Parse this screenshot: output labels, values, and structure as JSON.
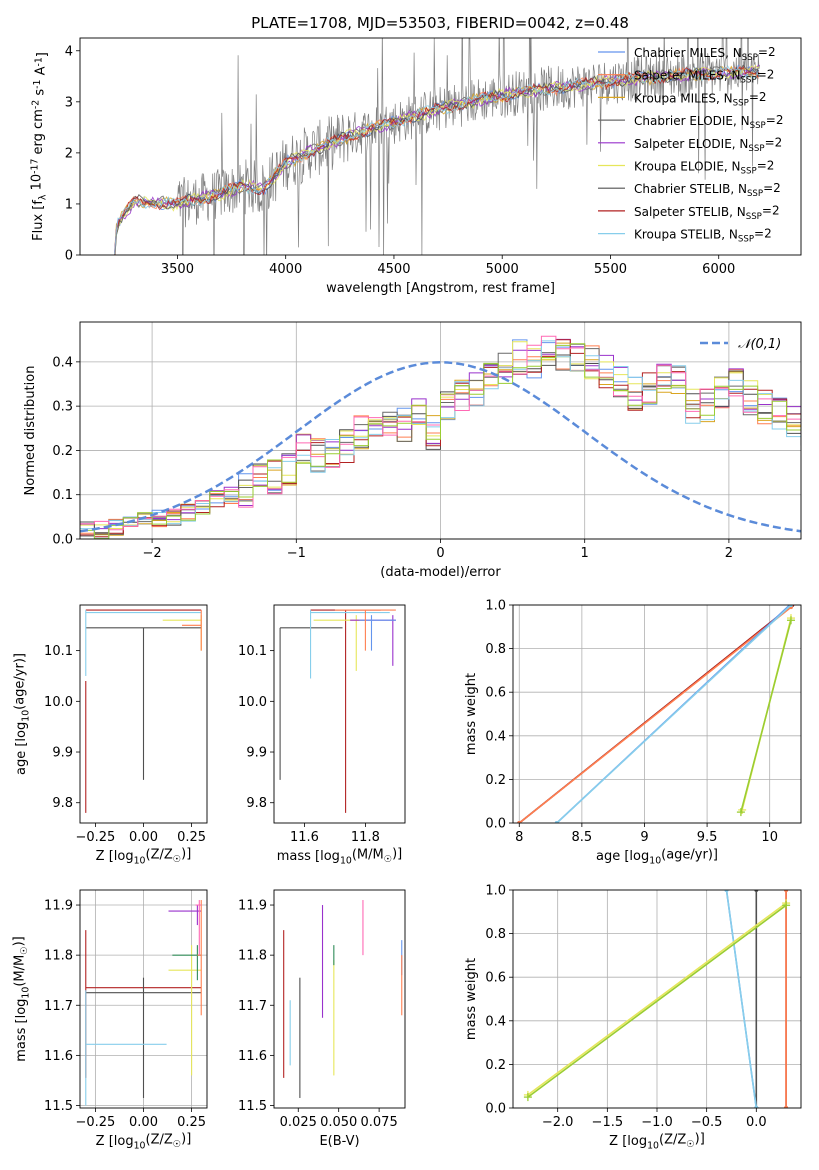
{
  "chart_data": [
    {
      "type": "line",
      "title": "PLATE=1708, MJD=53503, FIBERID=0042, z=0.48",
      "xlabel": "wavelength [Angstrom, rest frame]",
      "ylabel": "Flux [f$_\\lambda 10^{-17}$ erg cm$^{-2}$ s$^{-1}$ A$^{-1}$]",
      "xlim": [
        3050,
        6380
      ],
      "ylim": [
        0,
        4.25
      ],
      "xticks": [
        3500,
        4000,
        4500,
        5000,
        5500,
        6000
      ],
      "yticks": [
        0,
        1,
        2,
        3,
        4
      ],
      "grid": false,
      "legend_placement": "upper-right",
      "data_range": [
        3210,
        6190
      ],
      "observed_trend": [
        [
          3210,
          0.0
        ],
        [
          3220,
          0.6
        ],
        [
          3300,
          1.05
        ],
        [
          3500,
          1.0
        ],
        [
          3700,
          1.2
        ],
        [
          3800,
          1.35
        ],
        [
          3900,
          1.3
        ],
        [
          4000,
          1.8
        ],
        [
          4100,
          2.0
        ],
        [
          4300,
          2.35
        ],
        [
          4500,
          2.6
        ],
        [
          4700,
          2.85
        ],
        [
          4900,
          3.05
        ],
        [
          5100,
          3.2
        ],
        [
          5300,
          3.3
        ],
        [
          5600,
          3.45
        ],
        [
          5900,
          3.55
        ],
        [
          6190,
          3.6
        ]
      ],
      "series": [
        {
          "name": "Chabrier MILES, N$_{SSP}$=2",
          "color": "#6495ed"
        },
        {
          "name": "Salpeter MILES, N$_{SSP}$=2",
          "color": "#ff7f50"
        },
        {
          "name": "Kroupa MILES, N$_{SSP}$=2",
          "color": "#daa520"
        },
        {
          "name": "Chabrier ELODIE, N$_{SSP}$=2",
          "color": "#696969"
        },
        {
          "name": "Salpeter ELODIE, N$_{SSP}$=2",
          "color": "#9932cc"
        },
        {
          "name": "Kroupa ELODIE, N$_{SSP}$=2",
          "color": "#e6e65a"
        },
        {
          "name": "Chabrier STELIB, N$_{SSP}$=2",
          "color": "#505050"
        },
        {
          "name": "Salpeter STELIB, N$_{SSP}$=2",
          "color": "#b22222"
        },
        {
          "name": "Kroupa STELIB, N$_{SSP}$=2",
          "color": "#87ceeb"
        }
      ]
    },
    {
      "type": "line",
      "xlabel": "(data-model)/error",
      "ylabel": "Normed distribution",
      "xlim": [
        -2.5,
        2.5
      ],
      "ylim": [
        0,
        0.49
      ],
      "xticks": [
        -2,
        -1,
        0,
        1,
        2
      ],
      "yticks": [
        0.0,
        0.1,
        0.2,
        0.3,
        0.4
      ],
      "grid": true,
      "legend_placement": "upper-right",
      "legend": "$\\mathcal{N}(0,1)$",
      "bin_width": 0.1,
      "hist_envelope": [
        0.02,
        0.02,
        0.025,
        0.03,
        0.04,
        0.045,
        0.05,
        0.06,
        0.07,
        0.09,
        0.1,
        0.11,
        0.13,
        0.14,
        0.16,
        0.2,
        0.19,
        0.19,
        0.21,
        0.24,
        0.26,
        0.27,
        0.26,
        0.28,
        0.24,
        0.3,
        0.32,
        0.34,
        0.36,
        0.38,
        0.41,
        0.4,
        0.43,
        0.42,
        0.41,
        0.4,
        0.38,
        0.36,
        0.33,
        0.34,
        0.37,
        0.36,
        0.3,
        0.3,
        0.33,
        0.35,
        0.32,
        0.3,
        0.28,
        0.26,
        0.25,
        0.21,
        0.2,
        0.18,
        0.16,
        0.14,
        0.13,
        0.12,
        0.1,
        0.09,
        0.08,
        0.06,
        0.06,
        0.05,
        0.04,
        0.04,
        0.03,
        0.03,
        0.025,
        0.02,
        0.02,
        0.02,
        0.02,
        0.02,
        0.02,
        0.02,
        0.02,
        0.02,
        0.02,
        0.02,
        0.02,
        0.02,
        0.02,
        0.02,
        0.02,
        0.02,
        0.02,
        0.02,
        0.02,
        0.02
      ],
      "gauss_color": "#5b8bd9"
    },
    {
      "type": "scatter",
      "xlabel": "Z [log$_{10}$(Z/Z$_\\odot$)]",
      "ylabel": "age  [log$_{10}$(age/yr)]",
      "xlim": [
        -0.33,
        0.33
      ],
      "ylim": [
        9.76,
        10.19
      ],
      "xticks": [
        -0.25,
        0.0,
        0.25
      ],
      "xtick_labels": [
        "−0.25",
        "0.00",
        "0.25"
      ],
      "yticks": [
        9.8,
        9.9,
        10.0,
        10.1
      ],
      "grid": false,
      "crosses": [
        {
          "color": "#b22222",
          "x": [
            -0.3,
            0.3
          ],
          "y": [
            10.18,
            10.18
          ],
          "xerr": [
            [
              -0.3,
              0.3
            ]
          ],
          "yerr": [
            [
              9.78,
              10.04
            ]
          ]
        },
        {
          "color": "#e6e65a",
          "x": [
            0.3
          ],
          "y": [
            10.16
          ],
          "xerr": [
            [
              0.1,
              0.3
            ]
          ],
          "yerr": [
            [
              10.1,
              10.17
            ]
          ]
        },
        {
          "color": "#505050",
          "x": [
            0.0
          ],
          "y": [
            10.145
          ],
          "xerr": [
            [
              -0.3,
              0.3
            ]
          ],
          "yerr": [
            [
              9.845,
              10.145
            ]
          ]
        },
        {
          "color": "#87ceeb",
          "x": [
            -0.3
          ],
          "y": [
            10.175
          ],
          "xerr": [
            [
              -0.3,
              0.3
            ]
          ],
          "yerr": [
            [
              10.05,
              10.18
            ]
          ]
        },
        {
          "color": "#ff7f50",
          "x": [
            0.3
          ],
          "y": [
            10.15
          ],
          "xerr": [
            [
              0.2,
              0.3
            ]
          ],
          "yerr": [
            [
              10.1,
              10.18
            ]
          ]
        }
      ]
    },
    {
      "type": "scatter",
      "xlabel": "mass [log$_{10}$(M/M$_\\odot$)]",
      "xlim": [
        11.5,
        11.93
      ],
      "ylim": [
        9.76,
        10.19
      ],
      "xticks": [
        11.6,
        11.8
      ],
      "xtick_labels": [
        "11.6",
        "11.8"
      ],
      "yticks": [
        9.8,
        9.9,
        10.0,
        10.1
      ],
      "grid": false,
      "crosses": [
        {
          "color": "#505050",
          "x": [
            11.52,
            11.725
          ],
          "y": [
            10.145
          ],
          "xerr": [
            [
              11.52,
              11.725
            ]
          ],
          "yerr": [
            [
              9.845,
              10.145
            ]
          ]
        },
        {
          "color": "#b22222",
          "x": [
            11.735
          ],
          "y": [
            10.18
          ],
          "xerr": [
            [
              11.62,
              11.85
            ]
          ],
          "yerr": [
            [
              9.78,
              10.18
            ]
          ]
        },
        {
          "color": "#87ceeb",
          "x": [
            11.62
          ],
          "y": [
            10.175
          ],
          "xerr": [
            [
              11.62,
              11.88
            ]
          ],
          "yerr": [
            [
              10.045,
              10.18
            ]
          ]
        },
        {
          "color": "#e6e65a",
          "x": [
            11.77
          ],
          "y": [
            10.16
          ],
          "xerr": [
            [
              11.63,
              11.8
            ]
          ],
          "yerr": [
            [
              10.06,
              10.17
            ]
          ]
        },
        {
          "color": "#9932cc",
          "x": [
            11.89
          ],
          "y": [
            10.16
          ],
          "xerr": [
            [
              11.75,
              11.9
            ]
          ],
          "yerr": [
            [
              10.07,
              10.17
            ]
          ]
        },
        {
          "color": "#6495ed",
          "x": [
            11.82
          ],
          "y": [
            10.16
          ],
          "xerr": [
            [
              11.78,
              11.9
            ]
          ],
          "yerr": [
            [
              10.1,
              10.17
            ]
          ]
        },
        {
          "color": "#ff7f50",
          "x": [
            11.8
          ],
          "y": [
            10.18
          ],
          "xerr": [
            [
              11.7,
              11.9
            ]
          ],
          "yerr": [
            [
              10.1,
              10.18
            ]
          ]
        }
      ]
    },
    {
      "type": "line",
      "xlabel": "age  [log$_{10}$(age/yr)]",
      "ylabel": "mass weight",
      "xlim": [
        7.95,
        10.25
      ],
      "ylim": [
        0,
        1.0
      ],
      "xticks": [
        8.0,
        8.5,
        9.0,
        9.5,
        10.0
      ],
      "yticks": [
        0.0,
        0.2,
        0.4,
        0.6,
        0.8,
        1.0
      ],
      "grid": true,
      "series": [
        {
          "color": "#505050",
          "x": [
            8.0,
            10.18
          ],
          "y": [
            0.0,
            1.0
          ]
        },
        {
          "color": "#b22222",
          "x": [
            8.0,
            10.18
          ],
          "y": [
            0.0,
            1.0
          ]
        },
        {
          "color": "#ff7f50",
          "x": [
            8.0,
            10.17
          ],
          "y": [
            0.0,
            0.99
          ]
        },
        {
          "color": "#6495ed",
          "x": [
            8.3,
            10.16
          ],
          "y": [
            0.0,
            1.0
          ]
        },
        {
          "color": "#87ceeb",
          "x": [
            8.3,
            10.17
          ],
          "y": [
            0.0,
            1.0
          ]
        },
        {
          "color": "#e6e65a",
          "x": [
            9.78,
            10.17
          ],
          "y": [
            0.06,
            0.94
          ],
          "marker": "+"
        },
        {
          "color": "#9acd32",
          "x": [
            9.77,
            10.17
          ],
          "y": [
            0.05,
            0.93
          ],
          "marker": "+"
        }
      ]
    },
    {
      "type": "scatter",
      "xlabel": "Z [log$_{10}$(Z/Z$_\\odot$)]",
      "ylabel": "mass [log$_{10}$(M/M$_\\odot$)]",
      "xlim": [
        -0.33,
        0.33
      ],
      "ylim": [
        11.495,
        11.93
      ],
      "xticks": [
        -0.25,
        0.0,
        0.25
      ],
      "xtick_labels": [
        "−0.25",
        "0.00",
        "0.25"
      ],
      "yticks": [
        11.5,
        11.6,
        11.7,
        11.8,
        11.9
      ],
      "grid": true,
      "crosses": [
        {
          "color": "#b22222",
          "x": [
            -0.3
          ],
          "y": [
            11.735
          ],
          "xerr": [
            [
              -0.3,
              0.3
            ]
          ],
          "yerr": [
            [
              11.555,
              11.85
            ]
          ]
        },
        {
          "color": "#505050",
          "x": [
            0.0
          ],
          "y": [
            11.725
          ],
          "xerr": [
            [
              -0.3,
              0.3
            ]
          ],
          "yerr": [
            [
              11.515,
              11.755
            ]
          ]
        },
        {
          "color": "#87ceeb",
          "x": [
            -0.3
          ],
          "y": [
            11.622
          ],
          "xerr": [
            [
              -0.3,
              0.12
            ]
          ],
          "yerr": [
            [
              11.5,
              11.73
            ]
          ]
        },
        {
          "color": "#9932cc",
          "x": [
            0.28
          ],
          "y": [
            11.888
          ],
          "xerr": [
            [
              0.13,
              0.3
            ]
          ],
          "yerr": [
            [
              11.86,
              11.9
            ]
          ]
        },
        {
          "color": "#e6e65a",
          "x": [
            0.25
          ],
          "y": [
            11.77
          ],
          "xerr": [
            [
              0.13,
              0.3
            ]
          ],
          "yerr": [
            [
              11.56,
              11.82
            ]
          ]
        },
        {
          "color": "#2e8b57",
          "x": [
            0.28
          ],
          "y": [
            11.8
          ],
          "xerr": [
            [
              0.15,
              0.3
            ]
          ],
          "yerr": [
            [
              11.75,
              11.82
            ]
          ]
        },
        {
          "color": "#ff7f50",
          "x": [
            0.3
          ],
          "y": [
            11.8
          ],
          "xerr": [
            [
              0.28,
              0.3
            ]
          ],
          "yerr": [
            [
              11.68,
              11.91
            ]
          ]
        },
        {
          "color": "#ff69b4",
          "x": [
            0.29
          ],
          "y": [
            11.9
          ],
          "xerr": [
            [
              0.27,
              0.3
            ]
          ],
          "yerr": [
            [
              11.8,
              11.91
            ]
          ]
        }
      ]
    },
    {
      "type": "scatter",
      "xlabel": "E(B-V)",
      "xlim": [
        0.01,
        0.091
      ],
      "ylim": [
        11.495,
        11.93
      ],
      "xticks": [
        0.025,
        0.05,
        0.075
      ],
      "xtick_labels": [
        "0.025",
        "0.050",
        "0.075"
      ],
      "yticks": [
        11.5,
        11.6,
        11.7,
        11.8,
        11.9
      ],
      "grid": false,
      "bars": [
        {
          "color": "#b22222",
          "x": 0.016,
          "y": [
            11.555,
            11.85
          ]
        },
        {
          "color": "#87ceeb",
          "x": 0.02,
          "y": [
            11.58,
            11.71
          ]
        },
        {
          "color": "#505050",
          "x": 0.026,
          "y": [
            11.515,
            11.755
          ]
        },
        {
          "color": "#9932cc",
          "x": 0.04,
          "y": [
            11.675,
            11.9
          ]
        },
        {
          "color": "#e6e65a",
          "x": 0.047,
          "y": [
            11.56,
            11.79
          ]
        },
        {
          "color": "#2e8b57",
          "x": 0.047,
          "y": [
            11.78,
            11.82
          ]
        },
        {
          "color": "#ff69b4",
          "x": 0.065,
          "y": [
            11.8,
            11.91
          ]
        },
        {
          "color": "#6495ed",
          "x": 0.089,
          "y": [
            11.76,
            11.83
          ]
        },
        {
          "color": "#ff7f50",
          "x": 0.089,
          "y": [
            11.68,
            11.8
          ]
        }
      ]
    },
    {
      "type": "line",
      "xlabel": "Z [log$_{10}$(Z/Z$_\\odot$)]",
      "ylabel": "mass weight",
      "xlim": [
        -2.45,
        0.45
      ],
      "ylim": [
        0,
        1.0
      ],
      "xticks": [
        -2.0,
        -1.5,
        -1.0,
        -0.5,
        0.0
      ],
      "xtick_labels": [
        "−2.0",
        "−1.5",
        "−1.0",
        "−0.5",
        "0.0"
      ],
      "yticks": [
        0.0,
        0.2,
        0.4,
        0.6,
        0.8,
        1.0
      ],
      "grid": true,
      "series": [
        {
          "color": "#505050",
          "x": [
            0.0,
            0.0
          ],
          "y": [
            0.0,
            1.0
          ]
        },
        {
          "color": "#b22222",
          "x": [
            0.3,
            0.3
          ],
          "y": [
            0.0,
            1.0
          ]
        },
        {
          "color": "#ff7f50",
          "x": [
            0.3,
            0.3
          ],
          "y": [
            0.0,
            1.0
          ]
        },
        {
          "color": "#6495ed",
          "x": [
            -0.3,
            0.0
          ],
          "y": [
            1.0,
            0.0
          ]
        },
        {
          "color": "#87ceeb",
          "x": [
            -0.3,
            0.0
          ],
          "y": [
            1.0,
            0.0
          ]
        },
        {
          "color": "#e6e65a",
          "x": [
            -2.3,
            0.3
          ],
          "y": [
            0.06,
            0.94
          ],
          "marker": "+"
        },
        {
          "color": "#9acd32",
          "x": [
            -2.3,
            0.3
          ],
          "y": [
            0.05,
            0.93
          ],
          "marker": "+"
        }
      ]
    }
  ]
}
